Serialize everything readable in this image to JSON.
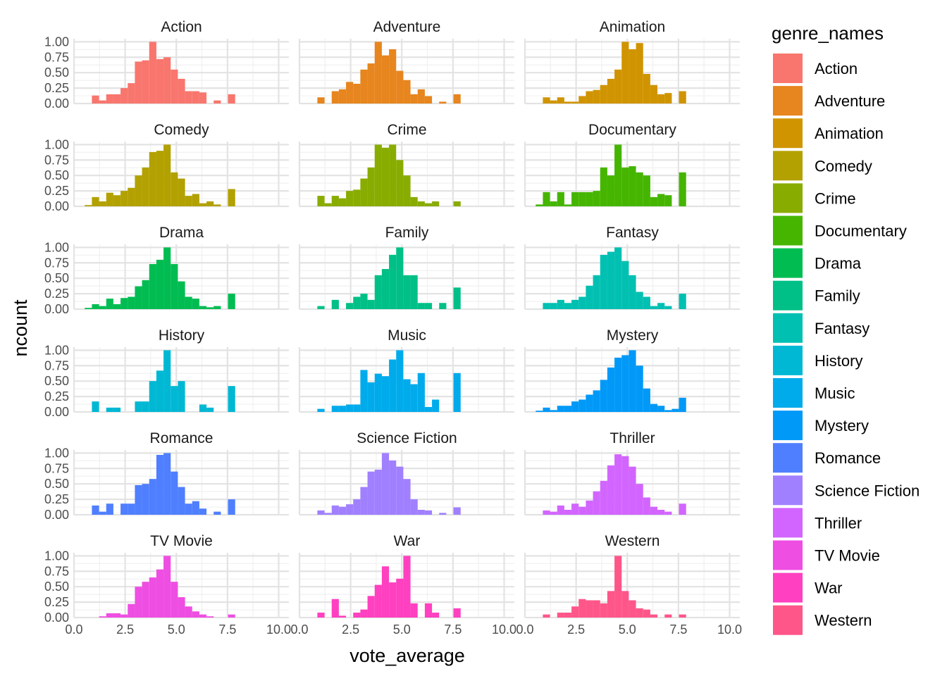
{
  "chart_data": {
    "type": "bar",
    "facet_layout": "3 columns x 6 rows",
    "x_label": "vote_average",
    "y_label": "ncount",
    "x_ticks": [
      "0.0",
      "2.5",
      "5.0",
      "7.5",
      "10.0"
    ],
    "y_ticks": [
      "0.00",
      "0.25",
      "0.50",
      "0.75",
      "1.00"
    ],
    "xlim": [
      0,
      10.5
    ],
    "ylim": [
      0,
      1.05
    ],
    "bin_width": 0.35,
    "bin_start": 0.35,
    "legend_title": "genre_names",
    "legend_position": "right",
    "grid": true,
    "series": [
      {
        "name": "Action",
        "color": "#F8766D",
        "values": [
          0,
          0,
          0.13,
          0.05,
          0.15,
          0.15,
          0.25,
          0.33,
          0.68,
          0.7,
          1.0,
          0.72,
          0.75,
          0.55,
          0.4,
          0.2,
          0.2,
          0.18,
          0,
          0.05,
          0,
          0.15
        ]
      },
      {
        "name": "Adventure",
        "color": "#E7851E",
        "values": [
          0,
          0,
          0.1,
          0,
          0.2,
          0.23,
          0.35,
          0.32,
          0.55,
          0.65,
          1.0,
          0.78,
          0.88,
          0.53,
          0.38,
          0.15,
          0.23,
          0.12,
          0,
          0.03,
          0,
          0.15
        ]
      },
      {
        "name": "Animation",
        "color": "#D09400",
        "values": [
          0,
          0,
          0.1,
          0.05,
          0.1,
          0.03,
          0.03,
          0.12,
          0.2,
          0.22,
          0.3,
          0.4,
          0.55,
          1.0,
          0.88,
          0.98,
          0.48,
          0.3,
          0.15,
          0.17,
          0,
          0.2
        ]
      },
      {
        "name": "Comedy",
        "color": "#B2A100",
        "values": [
          0,
          0.02,
          0.15,
          0.08,
          0.22,
          0.18,
          0.25,
          0.3,
          0.5,
          0.63,
          0.88,
          0.9,
          1.0,
          0.55,
          0.45,
          0.17,
          0.2,
          0.05,
          0.08,
          0.03,
          0,
          0.28
        ]
      },
      {
        "name": "Crime",
        "color": "#89AC00",
        "values": [
          0,
          0,
          0.17,
          0.05,
          0.17,
          0.13,
          0.25,
          0.27,
          0.45,
          0.63,
          1.0,
          0.95,
          1.0,
          0.75,
          0.5,
          0.15,
          0.08,
          0.05,
          0.08,
          0,
          0,
          0.08
        ]
      },
      {
        "name": "Documentary",
        "color": "#45B500",
        "values": [
          0,
          0.03,
          0.23,
          0.08,
          0.23,
          0.03,
          0.23,
          0.23,
          0.23,
          0.25,
          0.63,
          0.5,
          1.0,
          0.63,
          0.65,
          0.55,
          0.5,
          0.15,
          0.2,
          0.18,
          0,
          0.55
        ]
      },
      {
        "name": "Drama",
        "color": "#00BC51",
        "values": [
          0,
          0.02,
          0.08,
          0.05,
          0.17,
          0.08,
          0.18,
          0.2,
          0.37,
          0.47,
          0.73,
          0.8,
          1.0,
          0.73,
          0.45,
          0.2,
          0.17,
          0.05,
          0.03,
          0.05,
          0,
          0.25
        ]
      },
      {
        "name": "Family",
        "color": "#00C087",
        "values": [
          0,
          0,
          0.05,
          0,
          0.15,
          0,
          0.1,
          0.2,
          0.25,
          0.15,
          0.55,
          0.65,
          0.88,
          1.0,
          0.55,
          0.55,
          0.1,
          0.1,
          0,
          0.1,
          0,
          0.35
        ]
      },
      {
        "name": "Fantasy",
        "color": "#00C0B2",
        "values": [
          0,
          0,
          0.1,
          0.1,
          0.15,
          0.1,
          0.15,
          0.2,
          0.38,
          0.55,
          0.88,
          0.93,
          1.0,
          0.78,
          0.55,
          0.28,
          0.2,
          0.05,
          0.1,
          0.05,
          0,
          0.25
        ]
      },
      {
        "name": "History",
        "color": "#00B8D3",
        "values": [
          0,
          0,
          0.17,
          0,
          0.07,
          0.07,
          0,
          0,
          0.17,
          0.17,
          0.5,
          0.67,
          1.0,
          0.42,
          0.5,
          0,
          0,
          0.12,
          0.07,
          0,
          0,
          0.42
        ]
      },
      {
        "name": "Music",
        "color": "#00ABEC",
        "values": [
          0,
          0,
          0.05,
          0,
          0.1,
          0.1,
          0.12,
          0.12,
          0.68,
          0.48,
          0.62,
          0.58,
          0.85,
          1.0,
          0.53,
          0.45,
          0.63,
          0.08,
          0.2,
          0,
          0,
          0.63
        ]
      },
      {
        "name": "Mystery",
        "color": "#0099F8",
        "values": [
          0,
          0.02,
          0.07,
          0.03,
          0.1,
          0.1,
          0.17,
          0.2,
          0.28,
          0.35,
          0.52,
          0.72,
          0.88,
          0.92,
          1.0,
          0.75,
          0.38,
          0.13,
          0.1,
          0.03,
          0.05,
          0.23
        ]
      },
      {
        "name": "Romance",
        "color": "#4F7FFF",
        "values": [
          0,
          0,
          0.15,
          0.05,
          0.18,
          0,
          0.18,
          0.18,
          0.48,
          0.5,
          0.58,
          0.97,
          1.0,
          0.7,
          0.45,
          0.18,
          0.22,
          0.1,
          0,
          0.05,
          0,
          0.25
        ]
      },
      {
        "name": "Science Fiction",
        "color": "#A180FF",
        "values": [
          0,
          0,
          0.07,
          0.03,
          0.15,
          0.13,
          0.17,
          0.25,
          0.45,
          0.7,
          0.73,
          1.0,
          0.88,
          0.78,
          0.58,
          0.25,
          0.08,
          0.07,
          0,
          0.03,
          0,
          0.12
        ]
      },
      {
        "name": "Thriller",
        "color": "#D265FF",
        "values": [
          0,
          0,
          0.07,
          0.05,
          0.15,
          0.08,
          0.18,
          0.13,
          0.23,
          0.38,
          0.55,
          0.8,
          0.98,
          0.95,
          0.78,
          0.5,
          0.28,
          0.13,
          0.08,
          0.05,
          0,
          0.18
        ]
      },
      {
        "name": "TV Movie",
        "color": "#EE4EE2",
        "values": [
          0,
          0,
          0,
          0.02,
          0.07,
          0.07,
          0.05,
          0.22,
          0.5,
          0.58,
          0.65,
          0.78,
          1.0,
          0.58,
          0.33,
          0.18,
          0.1,
          0.05,
          0.02,
          0,
          0,
          0.05
        ]
      },
      {
        "name": "War",
        "color": "#FF40C0",
        "values": [
          0,
          0,
          0.08,
          0,
          0.3,
          0.03,
          0,
          0.08,
          0.13,
          0.35,
          0.53,
          0.83,
          0.57,
          0.63,
          1.0,
          0.23,
          0,
          0.23,
          0.08,
          0,
          0,
          0.15
        ]
      },
      {
        "name": "Western",
        "color": "#FF5689",
        "values": [
          0,
          0,
          0.05,
          0,
          0.08,
          0.08,
          0.18,
          0.3,
          0.28,
          0.28,
          0.23,
          0.43,
          1.0,
          0.43,
          0.28,
          0.15,
          0.13,
          0.05,
          0,
          0.05,
          0,
          0.05
        ]
      }
    ]
  }
}
